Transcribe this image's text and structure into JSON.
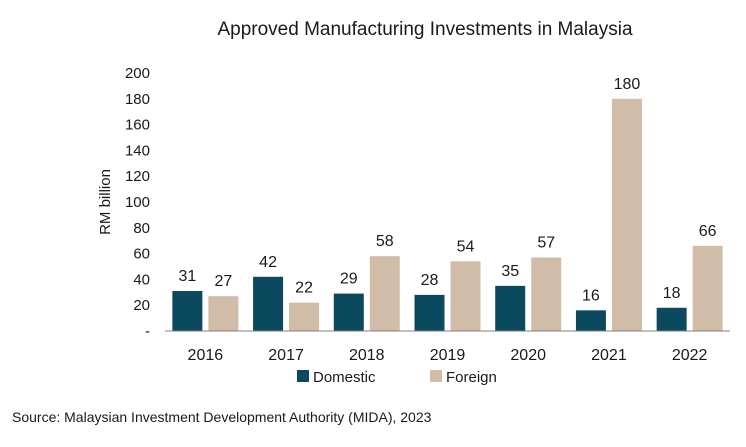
{
  "colors": {
    "domestic": "#0b4a5e",
    "foreign": "#d1bca8",
    "axis": "#7f7f7f"
  },
  "source": "Source: Malaysian Investment Development Authority (MIDA), 2023",
  "chart_data": {
    "type": "bar",
    "title": "Approved Manufacturing Investments in Malaysia",
    "xlabel": "",
    "ylabel": "RM billion",
    "ylim": [
      0,
      200
    ],
    "yticks": [
      0,
      20,
      40,
      60,
      80,
      100,
      120,
      140,
      160,
      180,
      200
    ],
    "yticklabels": [
      "-",
      "20",
      "40",
      "60",
      "80",
      "100",
      "120",
      "140",
      "160",
      "180",
      "200"
    ],
    "grid": false,
    "legend": "bottom",
    "categories": [
      "2016",
      "2017",
      "2018",
      "2019",
      "2020",
      "2021",
      "2022"
    ],
    "series": [
      {
        "name": "Domestic",
        "values": [
          31,
          42,
          29,
          28,
          35,
          16,
          18
        ]
      },
      {
        "name": "Foreign",
        "values": [
          27,
          22,
          58,
          54,
          57,
          180,
          66
        ]
      }
    ]
  }
}
